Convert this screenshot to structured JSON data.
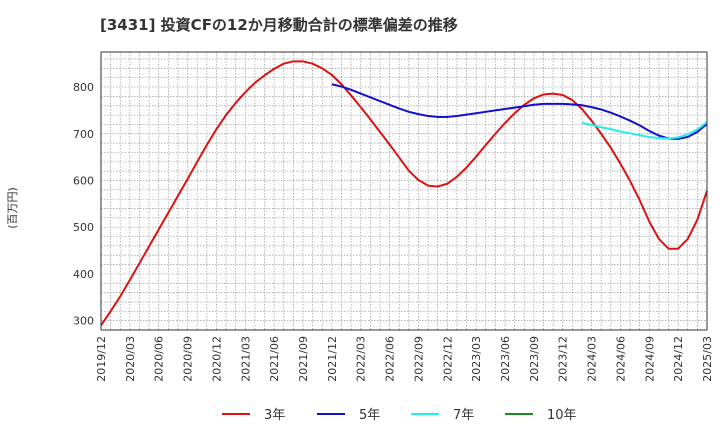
{
  "chart_data": {
    "type": "line",
    "title": "[3431]  投資CFの12か月移動合計の標準偏差の推移",
    "ylabel": "(百万円)",
    "xlabel": "",
    "ylim": [
      280,
      875
    ],
    "yticks": [
      300,
      400,
      500,
      600,
      700,
      800
    ],
    "x_ticks": [
      "2019/12",
      "2020/03",
      "2020/06",
      "2020/09",
      "2020/12",
      "2021/03",
      "2021/06",
      "2021/09",
      "2021/12",
      "2022/03",
      "2022/06",
      "2022/09",
      "2022/12",
      "2023/03",
      "2023/06",
      "2023/09",
      "2023/12",
      "2024/03",
      "2024/06",
      "2024/09",
      "2024/12",
      "2025/03"
    ],
    "grid": true,
    "legend_position": "bottom",
    "series": [
      {
        "name": "3年",
        "color": "#dd1111",
        "points": [
          [
            "2019/12",
            290
          ],
          [
            "2020/01",
            320
          ],
          [
            "2020/02",
            352
          ],
          [
            "2020/03",
            387
          ],
          [
            "2020/04",
            423
          ],
          [
            "2020/05",
            459
          ],
          [
            "2020/06",
            495
          ],
          [
            "2020/07",
            531
          ],
          [
            "2020/08",
            567
          ],
          [
            "2020/09",
            603
          ],
          [
            "2020/10",
            640
          ],
          [
            "2020/11",
            676
          ],
          [
            "2020/12",
            710
          ],
          [
            "2021/01",
            740
          ],
          [
            "2021/02",
            766
          ],
          [
            "2021/03",
            789
          ],
          [
            "2021/04",
            809
          ],
          [
            "2021/05",
            825
          ],
          [
            "2021/06",
            839
          ],
          [
            "2021/07",
            850
          ],
          [
            "2021/08",
            855
          ],
          [
            "2021/09",
            855
          ],
          [
            "2021/10",
            850
          ],
          [
            "2021/11",
            840
          ],
          [
            "2021/12",
            826
          ],
          [
            "2022/01",
            806
          ],
          [
            "2022/02",
            782
          ],
          [
            "2022/03",
            757
          ],
          [
            "2022/04",
            731
          ],
          [
            "2022/05",
            704
          ],
          [
            "2022/06",
            677
          ],
          [
            "2022/07",
            649
          ],
          [
            "2022/08",
            621
          ],
          [
            "2022/09",
            601
          ],
          [
            "2022/10",
            589
          ],
          [
            "2022/11",
            587
          ],
          [
            "2022/12",
            593
          ],
          [
            "2023/01",
            608
          ],
          [
            "2023/02",
            628
          ],
          [
            "2023/03",
            651
          ],
          [
            "2023/04",
            676
          ],
          [
            "2023/05",
            700
          ],
          [
            "2023/06",
            723
          ],
          [
            "2023/07",
            744
          ],
          [
            "2023/08",
            762
          ],
          [
            "2023/09",
            776
          ],
          [
            "2023/10",
            784
          ],
          [
            "2023/11",
            786
          ],
          [
            "2023/12",
            783
          ],
          [
            "2024/01",
            772
          ],
          [
            "2024/02",
            753
          ],
          [
            "2024/03",
            728
          ],
          [
            "2024/04",
            700
          ],
          [
            "2024/05",
            670
          ],
          [
            "2024/06",
            636
          ],
          [
            "2024/07",
            599
          ],
          [
            "2024/08",
            558
          ],
          [
            "2024/09",
            512
          ],
          [
            "2024/10",
            475
          ],
          [
            "2024/11",
            454
          ],
          [
            "2024/12",
            454
          ],
          [
            "2025/01",
            475
          ],
          [
            "2025/02",
            516
          ],
          [
            "2025/03",
            578
          ]
        ]
      },
      {
        "name": "5年",
        "color": "#1111cc",
        "points": [
          [
            "2021/12",
            806
          ],
          [
            "2022/01",
            801
          ],
          [
            "2022/02",
            794
          ],
          [
            "2022/03",
            786
          ],
          [
            "2022/04",
            778
          ],
          [
            "2022/05",
            770
          ],
          [
            "2022/06",
            762
          ],
          [
            "2022/07",
            754
          ],
          [
            "2022/08",
            747
          ],
          [
            "2022/09",
            742
          ],
          [
            "2022/10",
            738
          ],
          [
            "2022/11",
            736
          ],
          [
            "2022/12",
            736
          ],
          [
            "2023/01",
            738
          ],
          [
            "2023/02",
            741
          ],
          [
            "2023/03",
            744
          ],
          [
            "2023/04",
            747
          ],
          [
            "2023/05",
            750
          ],
          [
            "2023/06",
            753
          ],
          [
            "2023/07",
            756
          ],
          [
            "2023/08",
            759
          ],
          [
            "2023/09",
            762
          ],
          [
            "2023/10",
            764
          ],
          [
            "2023/11",
            764
          ],
          [
            "2023/12",
            764
          ],
          [
            "2024/01",
            763
          ],
          [
            "2024/02",
            761
          ],
          [
            "2024/03",
            757
          ],
          [
            "2024/04",
            752
          ],
          [
            "2024/05",
            745
          ],
          [
            "2024/06",
            737
          ],
          [
            "2024/07",
            728
          ],
          [
            "2024/08",
            718
          ],
          [
            "2024/09",
            706
          ],
          [
            "2024/10",
            696
          ],
          [
            "2024/11",
            690
          ],
          [
            "2024/12",
            689
          ],
          [
            "2025/01",
            693
          ],
          [
            "2025/02",
            704
          ],
          [
            "2025/03",
            721
          ]
        ]
      },
      {
        "name": "7年",
        "color": "#22eeee",
        "points": [
          [
            "2024/02",
            723
          ],
          [
            "2024/03",
            719
          ],
          [
            "2024/04",
            714
          ],
          [
            "2024/05",
            710
          ],
          [
            "2024/06",
            705
          ],
          [
            "2024/07",
            701
          ],
          [
            "2024/08",
            697
          ],
          [
            "2024/09",
            693
          ],
          [
            "2024/10",
            691
          ],
          [
            "2024/11",
            690
          ],
          [
            "2024/12",
            692
          ],
          [
            "2025/01",
            699
          ],
          [
            "2025/02",
            709
          ],
          [
            "2025/03",
            725
          ]
        ]
      },
      {
        "name": "10年",
        "color": "#228822",
        "points": []
      }
    ]
  }
}
